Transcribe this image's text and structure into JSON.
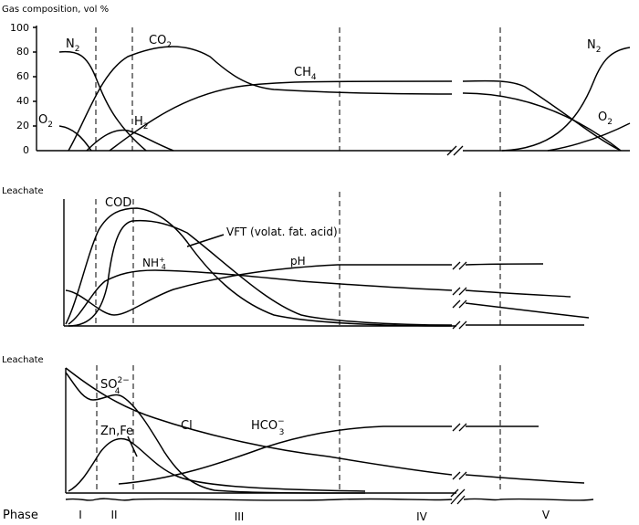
{
  "top_panel": {
    "title": "Gas composition, vol %",
    "yticks": [
      "100",
      "80",
      "60",
      "40",
      "20",
      "0"
    ],
    "curves": {
      "n2_start": "N",
      "n2_end": "N",
      "co2": "CO",
      "ch4": "CH",
      "o2_start": "O",
      "o2_end": "O",
      "h2": "H",
      "sub2": "2",
      "sub4": "4"
    }
  },
  "middle_panel": {
    "title": "Leachate",
    "curves": {
      "cod": "COD",
      "vft": "VFT (volat. fat. acid)",
      "nh4": "NH",
      "nh4_sub": "4",
      "nh4_sup": "+",
      "ph": "pH"
    }
  },
  "bottom_panel": {
    "title": "Leachate",
    "curves": {
      "so4": "SO",
      "so4_sub": "4",
      "so4_sup": "2−",
      "znfe": "Zn,Fe",
      "cl": "Cl",
      "hco3": "HCO",
      "hco3_sub": "3",
      "hco3_sup": "−"
    }
  },
  "phase_axis": {
    "label": "Phase",
    "phases": [
      "I",
      "II",
      "III",
      "IV",
      "V"
    ]
  }
}
